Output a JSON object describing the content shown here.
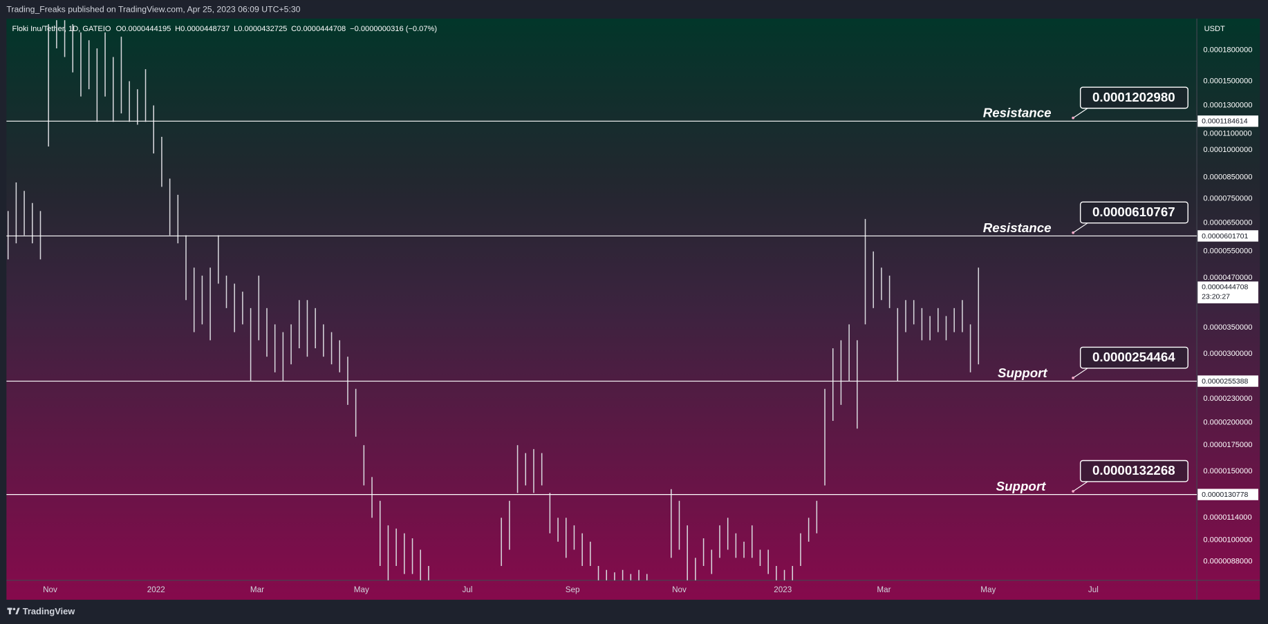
{
  "header": {
    "publisher": "Trading_Freaks published on TradingView.com, Apr 25, 2023 06:09 UTC+5:30"
  },
  "footer": {
    "brand": "TradingView"
  },
  "chart_data": {
    "type": "range_bar",
    "symbol": "Floki Inu/Tether, 1D, GATEIO",
    "ohlc": {
      "open": "O0.0000444195",
      "high": "H0.0000448737",
      "low": "L0.0000432725",
      "close": "C0.0000444708",
      "change": "−0.0000000316 (−0.07%)"
    },
    "currency": "USDT",
    "log_scale": true,
    "grid": false,
    "color": "#d9d9de",
    "ylim": [
      7.88e-06,
      0.000217
    ],
    "yticks": [
      {
        "value": 0.00018,
        "label": "0.0001800000"
      },
      {
        "value": 0.00015,
        "label": "0.0001500000"
      },
      {
        "value": 0.00013,
        "label": "0.0001300000"
      },
      {
        "value": 0.00011,
        "label": "0.0001100000"
      },
      {
        "value": 0.0001,
        "label": "0.0001000000"
      },
      {
        "value": 8.5e-05,
        "label": "0.0000850000"
      },
      {
        "value": 7.5e-05,
        "label": "0.0000750000"
      },
      {
        "value": 6.5e-05,
        "label": "0.0000650000"
      },
      {
        "value": 5.5e-05,
        "label": "0.0000550000"
      },
      {
        "value": 4.7e-05,
        "label": "0.0000470000"
      },
      {
        "value": 3.5e-05,
        "label": "0.0000350000"
      },
      {
        "value": 3e-05,
        "label": "0.0000300000"
      },
      {
        "value": 2.3e-05,
        "label": "0.0000230000"
      },
      {
        "value": 2e-05,
        "label": "0.0000200000"
      },
      {
        "value": 1.75e-05,
        "label": "0.0000175000"
      },
      {
        "value": 1.5e-05,
        "label": "0.0000150000"
      },
      {
        "value": 1.14e-05,
        "label": "0.0000114000"
      },
      {
        "value": 1e-05,
        "label": "0.0000100000"
      },
      {
        "value": 8.8e-06,
        "label": "0.0000088000"
      }
    ],
    "time_labels": [
      "Nov",
      "2022",
      "Mar",
      "May",
      "Jul",
      "Sep",
      "Nov",
      "2023",
      "Mar",
      "May",
      "Jul"
    ],
    "high": [
      6.97e-05,
      8.25e-05,
      7.85e-05,
      7.31e-05,
      6.97e-05,
      0.00021,
      0.000215,
      0.000215,
      0.00021,
      0.0002,
      0.000191,
      0.000182,
      0.0002,
      0.000173,
      0.000195,
      0.00015,
      0.000143,
      0.000161,
      0.00013,
      0.000108,
      8.44e-05,
      7.67e-05,
      6.04e-05,
      4.99e-05,
      4.76e-05,
      4.99e-05,
      6.04e-05,
      4.76e-05,
      4.54e-05,
      4.33e-05,
      3.93e-05,
      4.76e-05,
      3.93e-05,
      3.57e-05,
      3.41e-05,
      3.57e-05,
      4.12e-05,
      4.12e-05,
      3.93e-05,
      3.57e-05,
      3.41e-05,
      3.25e-05,
      2.95e-05,
      2.44e-05,
      1.75e-05,
      1.45e-05,
      1.26e-05,
      1.09e-05,
      1.07e-05,
      1.04e-05,
      1.01e-05,
      9.44e-06,
      8.58e-06,
      null,
      null,
      null,
      null,
      null,
      null,
      null,
      null,
      1.14e-05,
      1.26e-05,
      1.75e-05,
      1.67e-05,
      1.71e-05,
      1.67e-05,
      1.32e-05,
      1.14e-05,
      1.14e-05,
      1.09e-05,
      1.04e-05,
      9.9e-06,
      8.58e-06,
      8.38e-06,
      8.26e-06,
      8.38e-06,
      8.18e-06,
      8.38e-06,
      8.18e-06,
      null,
      null,
      1.35e-05,
      1.26e-05,
      1.09e-05,
      9e-06,
      1.01e-05,
      9.44e-06,
      1.09e-05,
      1.14e-05,
      1.04e-05,
      9.9e-06,
      1.09e-05,
      9.44e-06,
      9.44e-06,
      8.58e-06,
      8.38e-06,
      8.58e-06,
      1.04e-05,
      1.14e-05,
      1.26e-05,
      2.44e-05,
      3.1e-05,
      3.25e-05,
      3.57e-05,
      3.25e-05,
      6.65e-05,
      5.49e-05,
      4.99e-05,
      4.76e-05,
      3.93e-05,
      4.12e-05,
      4.12e-05,
      3.93e-05,
      3.75e-05,
      3.93e-05,
      3.75e-05,
      3.93e-05,
      4.12e-05,
      3.57e-05,
      4.99e-05
    ],
    "low": [
      5.24e-05,
      5.76e-05,
      6.04e-05,
      5.76e-05,
      5.24e-05,
      0.000102,
      0.000182,
      0.000173,
      0.000158,
      0.000137,
      0.000143,
      0.000118,
      0.000137,
      0.000118,
      0.000124,
      0.000118,
      0.000116,
      0.000118,
      9.79e-05,
      8.04e-05,
      6.04e-05,
      5.76e-05,
      4.12e-05,
      3.41e-05,
      3.57e-05,
      3.25e-05,
      4.54e-05,
      3.93e-05,
      3.41e-05,
      3.57e-05,
      2.56e-05,
      3.25e-05,
      2.95e-05,
      2.69e-05,
      2.56e-05,
      2.82e-05,
      3.1e-05,
      2.95e-05,
      3.1e-05,
      2.95e-05,
      2.82e-05,
      2.69e-05,
      2.22e-05,
      1.84e-05,
      1.38e-05,
      1.14e-05,
      8.58e-06,
      7.88e-06,
      8.58e-06,
      8.18e-06,
      8.18e-06,
      7.88e-06,
      7.88e-06,
      null,
      null,
      null,
      null,
      null,
      null,
      null,
      null,
      8.58e-06,
      9.44e-06,
      1.32e-05,
      1.38e-05,
      1.32e-05,
      1.38e-05,
      1.04e-05,
      9.9e-06,
      9e-06,
      9.44e-06,
      8.58e-06,
      8.58e-06,
      7.88e-06,
      7.88e-06,
      7.88e-06,
      7.88e-06,
      7.88e-06,
      7.88e-06,
      7.88e-06,
      null,
      null,
      9e-06,
      9.44e-06,
      7.88e-06,
      7.88e-06,
      8.58e-06,
      8.18e-06,
      9e-06,
      9.44e-06,
      9e-06,
      9e-06,
      9e-06,
      8.58e-06,
      8.18e-06,
      7.88e-06,
      7.88e-06,
      7.88e-06,
      8.58e-06,
      9.9e-06,
      1.04e-05,
      1.38e-05,
      2.02e-05,
      2.22e-05,
      2.56e-05,
      1.93e-05,
      3.57e-05,
      3.93e-05,
      4.12e-05,
      3.93e-05,
      2.56e-05,
      3.41e-05,
      3.57e-05,
      3.25e-05,
      3.25e-05,
      3.41e-05,
      3.25e-05,
      3.41e-05,
      3.41e-05,
      2.69e-05,
      2.82e-05
    ],
    "levels": [
      {
        "value": 0.0001184614,
        "label": "0.0001184614"
      },
      {
        "value": 6.01701e-05,
        "label": "0.0000601701"
      },
      {
        "value": 2.55388e-05,
        "label": "0.0000255388"
      },
      {
        "value": 1.30778e-05,
        "label": "0.0000130778"
      }
    ],
    "annotations": [
      {
        "text": "Resistance",
        "price": "0.0001202980"
      },
      {
        "text": "Resistance",
        "price": "0.0000610767"
      },
      {
        "text": "Support",
        "price": "0.0000254464"
      },
      {
        "text": "Support",
        "price": "0.0000132268"
      }
    ],
    "last_price": {
      "value": 4.44708e-05,
      "label": "0.0000444708",
      "countdown": "23:20:27"
    }
  }
}
